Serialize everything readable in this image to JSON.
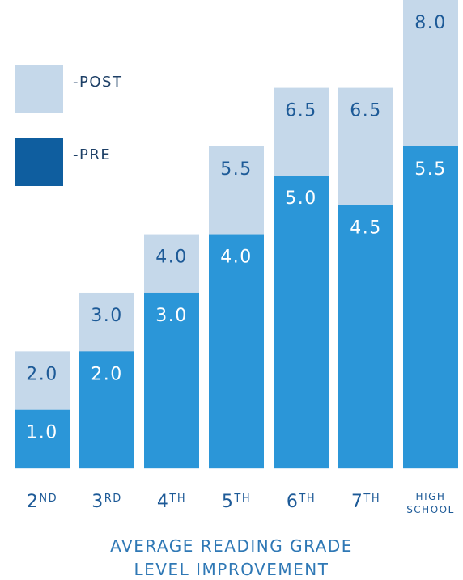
{
  "chart_data": {
    "type": "overlapped_bar",
    "title": [
      "AVERAGE READING GRADE",
      "LEVEL IMPROVEMENT"
    ],
    "categories": [
      "2",
      "3",
      "4",
      "5",
      "6",
      "7",
      "HIGH SCHOOL"
    ],
    "category_suffixes": [
      "ND",
      "RD",
      "TH",
      "TH",
      "TH",
      "TH",
      null
    ],
    "series": [
      {
        "name": "-POST",
        "color": "#c5d8ea",
        "legend_color": "#c5d8ea",
        "label_color": "#1d5a97",
        "values": [
          2,
          3,
          4,
          5.5,
          6.5,
          6.5,
          8
        ],
        "value_labels": [
          "2.0",
          "3.0",
          "4.0",
          "5.5",
          "6.5",
          "6.5",
          "8.0"
        ]
      },
      {
        "name": "-PRE",
        "color": "#2b96d8",
        "legend_color": "#0f5e9f",
        "label_color": "#ffffff",
        "values": [
          1,
          2,
          3,
          4,
          5,
          4.5,
          5.5
        ],
        "value_labels": [
          "1.0",
          "2.0",
          "3.0",
          "4.0",
          "5.0",
          "4.5",
          "5.5"
        ]
      }
    ],
    "ylim": [
      -0.15,
      8.0
    ]
  }
}
